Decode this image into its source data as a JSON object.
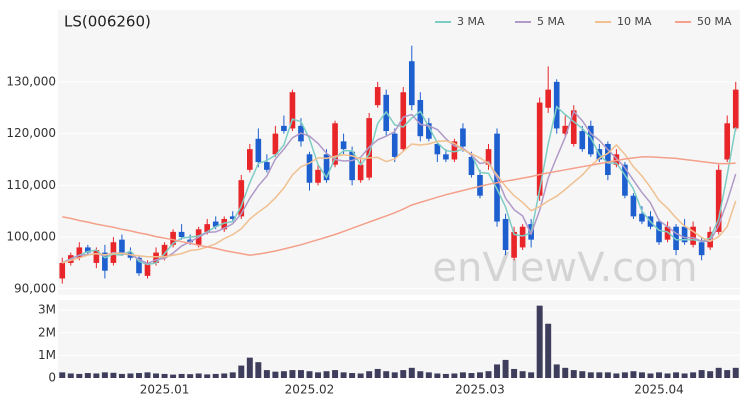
{
  "chart_data": [
    {
      "type": "candlestick",
      "title": "LS(006260)",
      "watermark": "enViewV.com",
      "up_color": "#e8262a",
      "down_color": "#1e5fd0",
      "legend": "top-right",
      "grid": true,
      "ylim": [
        88800,
        143900
      ],
      "yticks": [
        {
          "value": 90000,
          "label": "90,000"
        },
        {
          "value": 100000,
          "label": "100,000"
        },
        {
          "value": 110000,
          "label": "110,000"
        },
        {
          "value": 120000,
          "label": "120,000"
        },
        {
          "value": 130000,
          "label": "130,000"
        }
      ],
      "open": [
        92000,
        95000,
        96000,
        98000,
        95000,
        97000,
        95000,
        99500,
        97000,
        96000,
        92500,
        95000,
        96000,
        98500,
        101000,
        99500,
        98500,
        101000,
        103000,
        101500,
        104000,
        104000,
        113000,
        119000,
        114500,
        116000,
        121500,
        121000,
        121500,
        116000,
        110500,
        116000,
        114000,
        118500,
        116500,
        111000,
        111500,
        125500,
        127500,
        120000,
        117000,
        134000,
        126500,
        122000,
        118000,
        116000,
        115000,
        121000,
        115500,
        112000,
        114000,
        120000,
        103500,
        96000,
        98000,
        102500,
        108000,
        125000,
        130000,
        120000,
        118000,
        120500,
        121500,
        117000,
        118000,
        114000,
        114000,
        108000,
        104500,
        104000,
        103000,
        99500,
        102000,
        102000,
        98500,
        99000,
        98000,
        101000,
        115000,
        121000
      ],
      "high": [
        96000,
        97000,
        99000,
        98500,
        98000,
        98500,
        100000,
        100500,
        98000,
        96500,
        95500,
        98000,
        99000,
        101500,
        102500,
        100500,
        102000,
        103500,
        104000,
        104000,
        105000,
        112000,
        118000,
        121000,
        116000,
        121500,
        123500,
        128500,
        123000,
        116500,
        114000,
        117000,
        122500,
        120000,
        117500,
        115000,
        124000,
        130000,
        128500,
        121000,
        129000,
        137000,
        128000,
        123000,
        118500,
        117000,
        119000,
        122000,
        116500,
        113000,
        118000,
        121000,
        104500,
        102000,
        102500,
        103500,
        127000,
        133000,
        130500,
        123500,
        125500,
        121500,
        122500,
        118000,
        118500,
        117000,
        114500,
        108500,
        106000,
        105000,
        103500,
        103000,
        102500,
        103500,
        103000,
        100000,
        102000,
        114000,
        123500,
        130000
      ],
      "low": [
        91000,
        94500,
        95500,
        96500,
        94000,
        92000,
        94500,
        96500,
        95500,
        92500,
        92000,
        94500,
        95500,
        98000,
        99500,
        98500,
        98000,
        100500,
        101500,
        101000,
        103000,
        103500,
        112500,
        113500,
        112500,
        115500,
        120000,
        120500,
        117500,
        109000,
        110000,
        110500,
        113500,
        116000,
        110000,
        110500,
        111000,
        125000,
        119500,
        114500,
        116500,
        124500,
        118500,
        118500,
        114500,
        114500,
        114500,
        116500,
        111500,
        107500,
        113000,
        102000,
        96500,
        95500,
        97500,
        98000,
        107000,
        124000,
        120000,
        119500,
        117500,
        116500,
        115500,
        114500,
        111000,
        113500,
        107500,
        103500,
        102500,
        101500,
        98500,
        99000,
        96500,
        98500,
        98000,
        95500,
        97500,
        100500,
        114500,
        120500
      ],
      "close": [
        95000,
        96500,
        98000,
        97000,
        97500,
        93500,
        99000,
        97000,
        96000,
        93000,
        95000,
        97000,
        98500,
        101000,
        100000,
        99000,
        101500,
        102500,
        102000,
        103500,
        103500,
        111000,
        117000,
        114500,
        113000,
        120000,
        120500,
        128000,
        118500,
        110500,
        113000,
        111000,
        122000,
        117000,
        111000,
        114000,
        123000,
        129000,
        120500,
        115500,
        128000,
        125500,
        119500,
        119000,
        116000,
        115000,
        118500,
        117500,
        112000,
        108000,
        117000,
        103000,
        97500,
        101000,
        102000,
        99500,
        126000,
        128500,
        121000,
        121500,
        124500,
        117000,
        116000,
        115000,
        112000,
        116000,
        108000,
        104000,
        103000,
        102000,
        99000,
        102000,
        97500,
        99000,
        102000,
        96500,
        101000,
        113000,
        122000,
        128500
      ],
      "lines": [
        {
          "name": "3 MA",
          "color": "#7ecdc4",
          "values": [
            95000,
            95800,
            96500,
            97200,
            97500,
            96000,
            96700,
            96500,
            97300,
            95300,
            94700,
            95000,
            96800,
            98800,
            99800,
            100000,
            100200,
            101000,
            102000,
            102700,
            103000,
            106000,
            110500,
            114200,
            114800,
            115800,
            117800,
            122800,
            122300,
            119000,
            114000,
            111500,
            115300,
            116700,
            116700,
            114000,
            116000,
            122000,
            124200,
            121700,
            121300,
            123000,
            124300,
            121300,
            118200,
            116700,
            116500,
            117000,
            116000,
            112500,
            112300,
            109300,
            105800,
            100500,
            100200,
            100800,
            109200,
            118000,
            125200,
            123700,
            122300,
            121000,
            119200,
            116000,
            114300,
            114300,
            112000,
            109300,
            105000,
            103000,
            101300,
            101000,
            99500,
            99500,
            99500,
            99200,
            99800,
            103500,
            112000,
            121200
          ]
        },
        {
          "name": "5 MA",
          "color": "#b09ac8",
          "values": [
            95000,
            95800,
            96500,
            96600,
            96800,
            96400,
            97000,
            96800,
            96600,
            95700,
            94900,
            95600,
            95900,
            96900,
            98300,
            99100,
            100000,
            100900,
            101000,
            101700,
            102600,
            104500,
            107500,
            109900,
            111800,
            115100,
            117000,
            119200,
            120100,
            119500,
            118100,
            116200,
            115000,
            114700,
            114800,
            115400,
            117400,
            118800,
            119500,
            120400,
            123200,
            123700,
            121800,
            121500,
            120800,
            119000,
            117600,
            117200,
            115800,
            114200,
            114600,
            111500,
            107500,
            105300,
            104100,
            100600,
            105200,
            111400,
            115400,
            119300,
            124300,
            122500,
            120000,
            118700,
            116900,
            115200,
            113400,
            111000,
            108600,
            106600,
            103200,
            102000,
            100700,
            99900,
            99900,
            99200,
            99200,
            102300,
            106900,
            112200
          ]
        },
        {
          "name": "10 MA",
          "color": "#f0c090",
          "values": [
            95000,
            95500,
            96000,
            96500,
            96800,
            96600,
            96800,
            96900,
            96600,
            96400,
            96200,
            96200,
            96200,
            96500,
            96800,
            97400,
            97600,
            98100,
            98700,
            99700,
            100500,
            101600,
            103500,
            104800,
            106000,
            107600,
            109500,
            112000,
            113600,
            114300,
            115300,
            115200,
            115600,
            115900,
            115700,
            115100,
            115300,
            115400,
            114600,
            115100,
            116600,
            118000,
            117800,
            118000,
            118500,
            118600,
            118100,
            116900,
            116100,
            115300,
            114200,
            112000,
            109800,
            108000,
            106700,
            105100,
            105900,
            107000,
            107900,
            109200,
            110600,
            112000,
            113800,
            115200,
            116200,
            117800,
            116000,
            113600,
            111800,
            109600,
            107100,
            105600,
            103700,
            102100,
            101100,
            99900,
            99200,
            100100,
            102000,
            107000
          ]
        },
        {
          "name": "50 MA",
          "color": "#f4a08a",
          "values": [
            103900,
            103600,
            103200,
            102900,
            102500,
            102200,
            101900,
            101500,
            101200,
            100800,
            100500,
            100100,
            99800,
            99500,
            99100,
            98800,
            98400,
            98100,
            97800,
            97400,
            97100,
            96800,
            96500,
            96700,
            97000,
            97300,
            97700,
            98100,
            98500,
            99000,
            99500,
            100000,
            100500,
            101100,
            101700,
            102300,
            102900,
            103500,
            104100,
            104700,
            105400,
            106200,
            106700,
            107200,
            107700,
            108200,
            108600,
            109000,
            109400,
            109800,
            110200,
            110500,
            110800,
            111100,
            111400,
            111700,
            112100,
            112400,
            112700,
            113000,
            113300,
            113600,
            113900,
            114200,
            114500,
            114800,
            115100,
            115300,
            115500,
            115500,
            115400,
            115300,
            115200,
            115000,
            114800,
            114600,
            114400,
            114200,
            114200,
            114300
          ]
        }
      ]
    },
    {
      "type": "bar",
      "color": "#3f3d5c",
      "grid": true,
      "categories": [
        null,
        null,
        null,
        null,
        null,
        null,
        null,
        null,
        null,
        null,
        null,
        null,
        "2025.01",
        null,
        null,
        null,
        null,
        null,
        null,
        null,
        null,
        null,
        null,
        null,
        null,
        null,
        null,
        null,
        null,
        "2025.02",
        null,
        null,
        null,
        null,
        null,
        null,
        null,
        null,
        null,
        null,
        null,
        null,
        null,
        null,
        null,
        null,
        null,
        null,
        null,
        "2025.03",
        null,
        null,
        null,
        null,
        null,
        null,
        null,
        null,
        null,
        null,
        null,
        null,
        null,
        null,
        null,
        null,
        null,
        null,
        null,
        null,
        "2025.04",
        null,
        null,
        null,
        null,
        null,
        null,
        null,
        null,
        null
      ],
      "ylim": [
        0,
        3450000
      ],
      "yticks": [
        0,
        {
          "value": 1000000,
          "label": "1M"
        },
        {
          "value": 2000000,
          "label": "2M"
        },
        {
          "value": 3000000,
          "label": "3M"
        }
      ],
      "values": [
        250000,
        200000,
        180000,
        220000,
        200000,
        250000,
        230000,
        180000,
        200000,
        220000,
        250000,
        200000,
        180000,
        150000,
        180000,
        170000,
        200000,
        160000,
        180000,
        200000,
        250000,
        550000,
        900000,
        700000,
        350000,
        280000,
        300000,
        350000,
        350000,
        300000,
        250000,
        300000,
        350000,
        250000,
        220000,
        200000,
        300000,
        400000,
        300000,
        250000,
        350000,
        450000,
        300000,
        250000,
        200000,
        180000,
        200000,
        250000,
        220000,
        250000,
        300000,
        600000,
        800000,
        400000,
        300000,
        250000,
        3200000,
        2400000,
        600000,
        450000,
        350000,
        300000,
        250000,
        250000,
        250000,
        200000,
        250000,
        300000,
        250000,
        200000,
        250000,
        200000,
        250000,
        200000,
        250000,
        350000,
        300000,
        450000,
        350000,
        450000
      ]
    }
  ]
}
